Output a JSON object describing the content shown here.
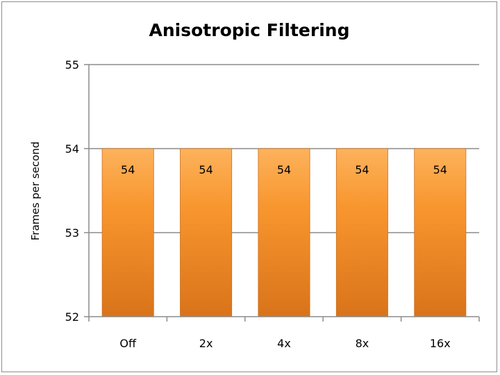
{
  "chart_data": {
    "type": "bar",
    "title": "Anisotropic Filtering",
    "xlabel": "",
    "ylabel": "Frames per second",
    "categories": [
      "Off",
      "2x",
      "4x",
      "8x",
      "16x"
    ],
    "values": [
      54,
      54,
      54,
      54,
      54
    ],
    "data_labels": [
      "54",
      "54",
      "54",
      "54",
      "54"
    ],
    "ylim": [
      52,
      55
    ],
    "yticks": [
      52,
      53,
      54,
      55
    ],
    "ytick_labels": [
      "52",
      "53",
      "54",
      "55"
    ],
    "grid": true,
    "legend": "none",
    "bar_color": "#f7962f"
  }
}
